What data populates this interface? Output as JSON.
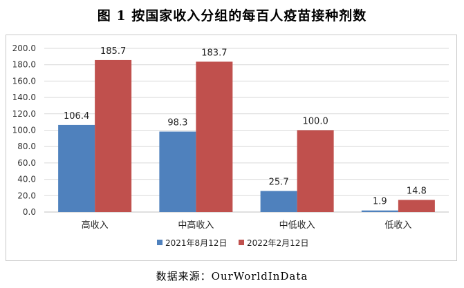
{
  "title": "图 1  按国家收入分组的每百人疫苗接种剂数",
  "source": "数据来源：OurWorldInData",
  "colors": {
    "series1": "#4f81bd",
    "series2": "#c0504d",
    "grid": "#d9d9d9",
    "axis": "#bfbfbf"
  },
  "chart_data": {
    "type": "bar",
    "title": "图 1  按国家收入分组的每百人疫苗接种剂数",
    "xlabel": "",
    "ylabel": "",
    "categories": [
      "高收入",
      "中高收入",
      "中低收入",
      "低收入"
    ],
    "series": [
      {
        "name": "2021年8月12日",
        "values": [
          106.4,
          98.3,
          25.7,
          1.9
        ],
        "labels": [
          "106.4",
          "98.3",
          "25.7",
          "1.9"
        ]
      },
      {
        "name": "2022年2月12日",
        "values": [
          185.7,
          183.7,
          100.0,
          14.8
        ],
        "labels": [
          "185.7",
          "183.7",
          "100.0",
          "14.8"
        ]
      }
    ],
    "ylim": [
      0,
      200
    ],
    "yticks": [
      "0.0",
      "20.0",
      "40.0",
      "60.0",
      "80.0",
      "100.0",
      "120.0",
      "140.0",
      "160.0",
      "180.0",
      "200.0"
    ],
    "grid": true,
    "legend": "bottom"
  }
}
